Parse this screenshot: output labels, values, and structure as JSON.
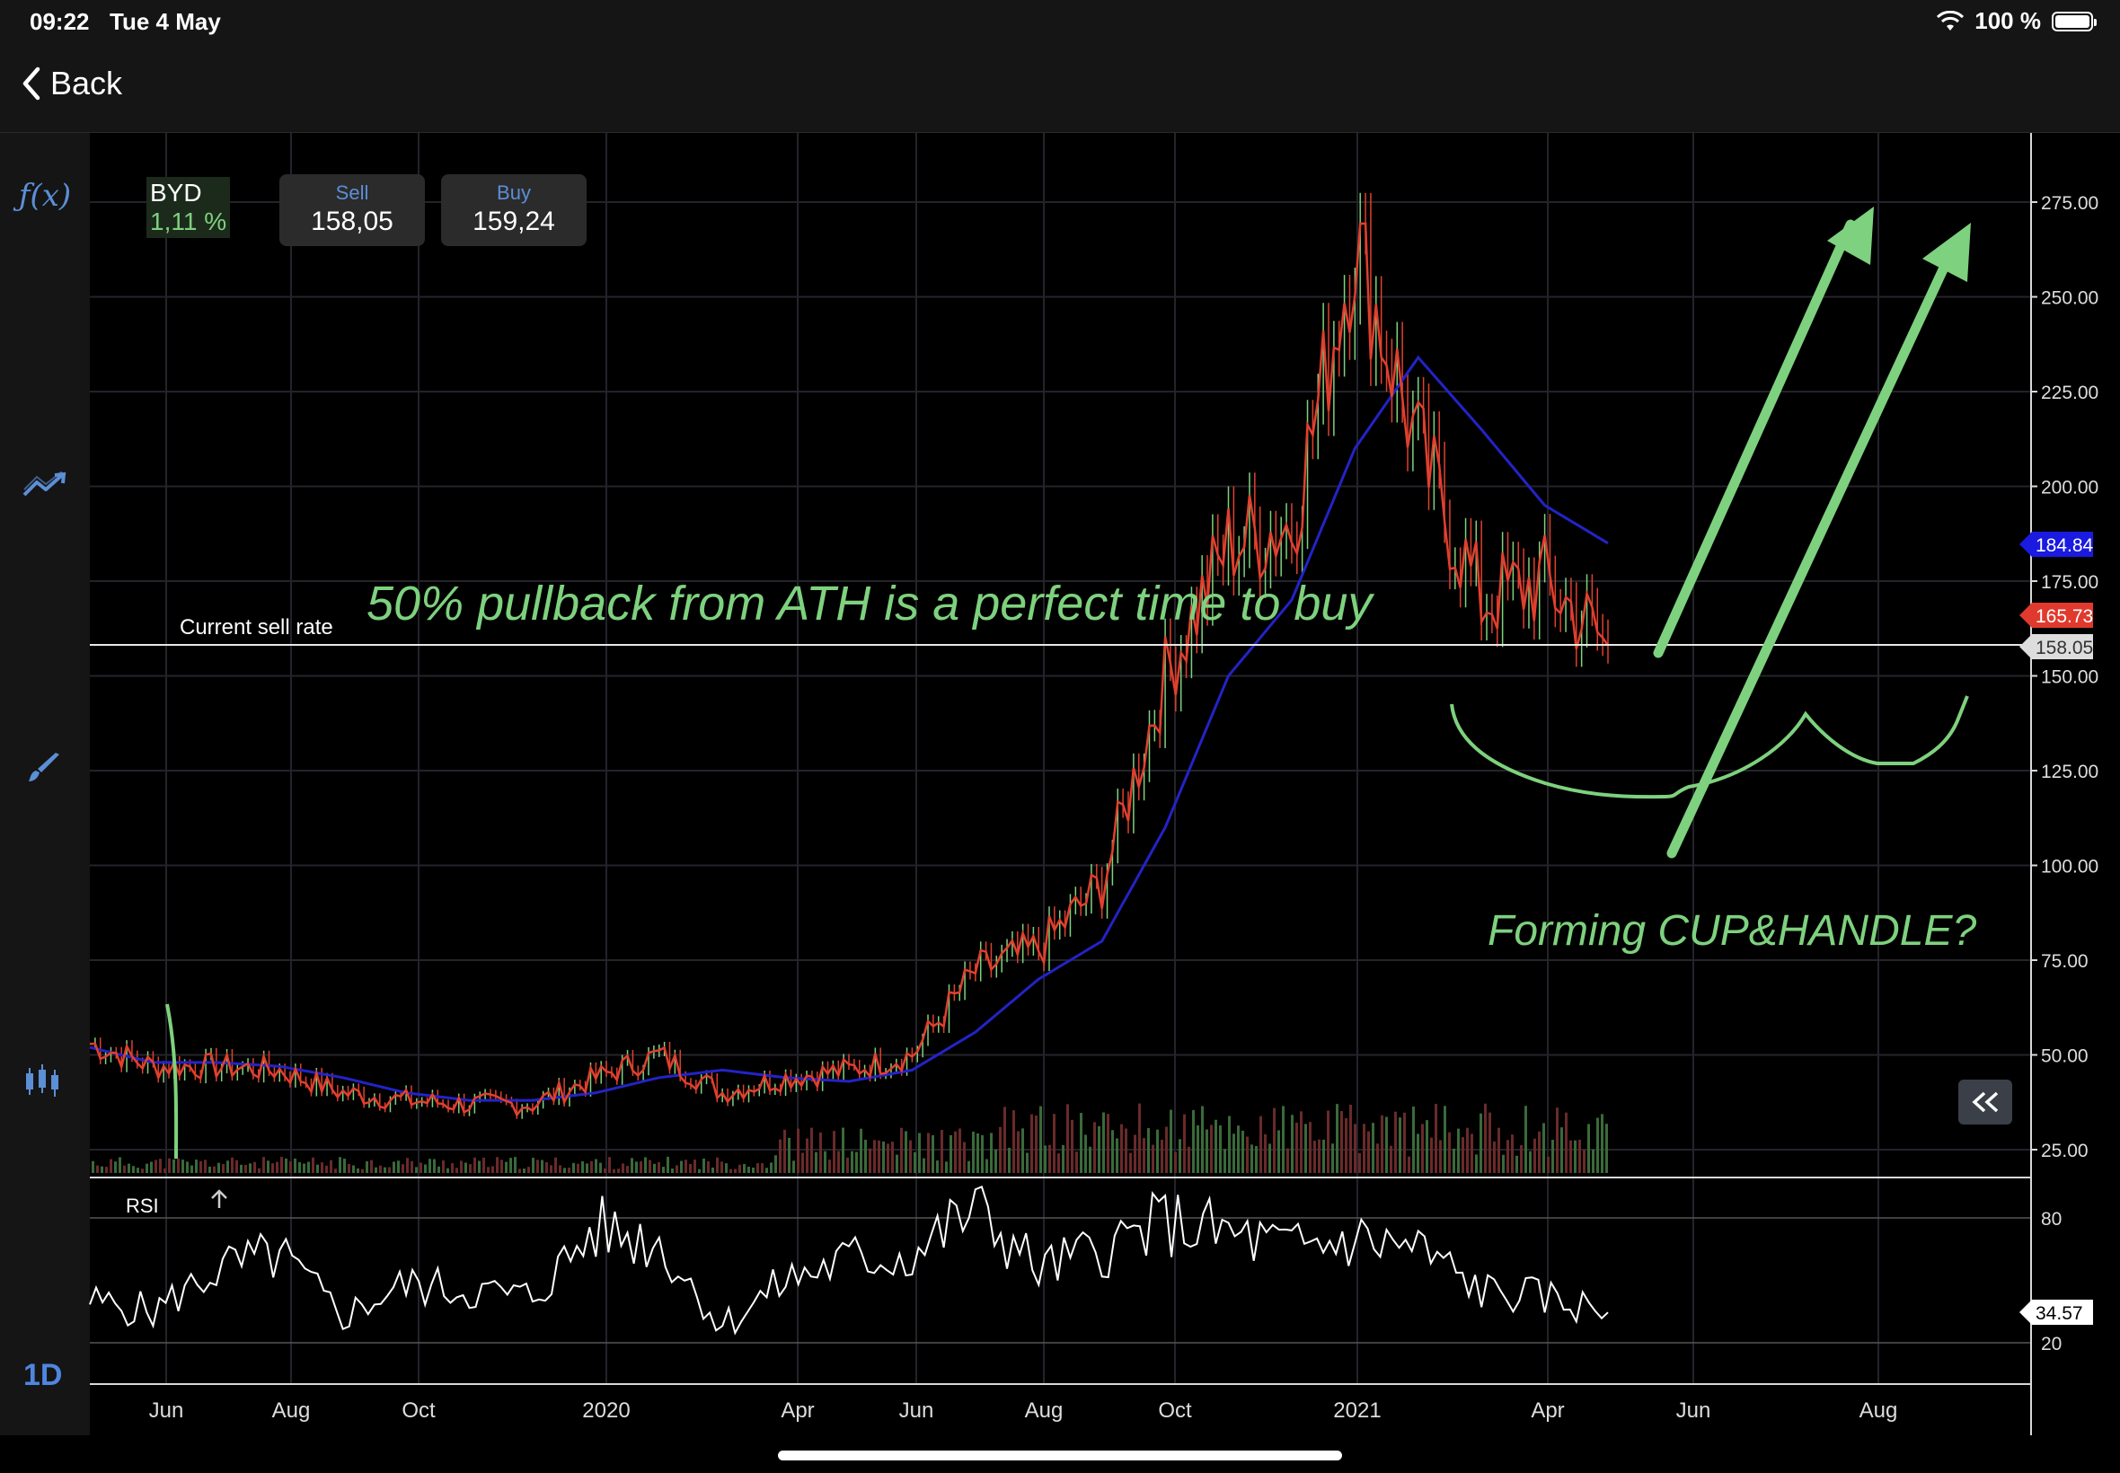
{
  "status_bar": {
    "time": "09:22",
    "date": "Tue 4 May",
    "battery": "100 %"
  },
  "nav": {
    "back_label": "Back"
  },
  "sidebar": {
    "period": "1D",
    "icons": [
      "function-icon",
      "trend-icon",
      "brush-icon",
      "candlestick-icon"
    ]
  },
  "ticker": {
    "symbol": "BYD",
    "change": "1,11 %"
  },
  "quote": {
    "sell_label": "Sell",
    "sell_value": "158,05",
    "buy_label": "Buy",
    "buy_value": "159,24"
  },
  "chart": {
    "current_rate_label": "Current sell rate",
    "rsi_label": "RSI",
    "annotation_pullback": "50% pullback from ATH is a perfect time to buy",
    "annotation_pattern": "Forming CUP&HANDLE?",
    "price_ticks": [
      "275.00",
      "250.00",
      "225.00",
      "200.00",
      "175.00",
      "150.00",
      "125.00",
      "100.00",
      "75.00",
      "50.00",
      "25.00"
    ],
    "rsi_ticks": [
      "80",
      "20"
    ],
    "x_ticks": [
      "Jun",
      "Aug",
      "Oct",
      "2020",
      "Apr",
      "Jun",
      "Aug",
      "Oct",
      "2021",
      "Apr",
      "Jun",
      "Aug"
    ],
    "markers": {
      "ma_value": "184.84",
      "last_value": "165.73",
      "sell_value": "158.05",
      "rsi_value": "34.57"
    }
  },
  "colors": {
    "accent": "#5b8fd6",
    "annotation": "#7ed17e",
    "price_line": "#e0402e",
    "ma_line": "#2323c8",
    "up": "#7ed17e",
    "down": "#e0402e"
  },
  "chart_data": {
    "type": "line",
    "title": "",
    "x": [
      "2019-05",
      "2019-06",
      "2019-07",
      "2019-08",
      "2019-09",
      "2019-10",
      "2019-11",
      "2019-12",
      "2020-01",
      "2020-02",
      "2020-03",
      "2020-04",
      "2020-05",
      "2020-06",
      "2020-07",
      "2020-08",
      "2020-09",
      "2020-10",
      "2020-11",
      "2020-12",
      "2021-01",
      "2021-02",
      "2021-03",
      "2021-04",
      "2021-05"
    ],
    "series": [
      {
        "values": [
          53,
          47,
          47,
          46,
          40,
          38,
          37,
          37,
          44,
          50,
          40,
          44,
          46,
          50,
          72,
          78,
          95,
          150,
          185,
          190,
          265,
          210,
          170,
          175,
          158
        ]
      },
      {
        "values": [
          52,
          48,
          48,
          47,
          44,
          40,
          38,
          38,
          40,
          44,
          46,
          44,
          43,
          46,
          56,
          70,
          80,
          110,
          150,
          170,
          210,
          234,
          215,
          195,
          185
        ]
      }
    ],
    "ylim": [
      0,
      285
    ],
    "rsi": {
      "ylim": [
        0,
        100
      ],
      "values": [
        40,
        35,
        55,
        62,
        33,
        48,
        45,
        42,
        75,
        68,
        28,
        50,
        60,
        62,
        85,
        55,
        65,
        78,
        72,
        65,
        70,
        65,
        45,
        42,
        34.57
      ]
    },
    "grid": true
  }
}
